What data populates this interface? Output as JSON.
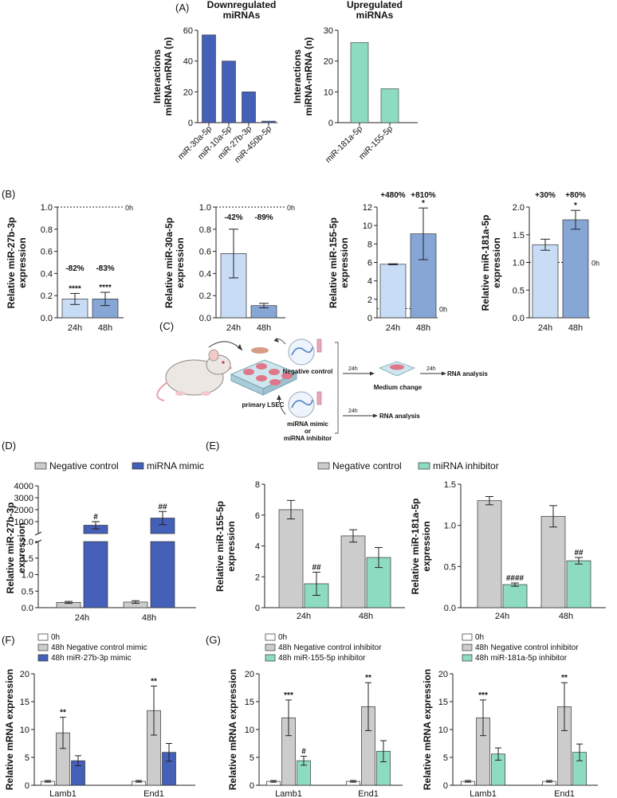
{
  "figure": {
    "colors": {
      "dark_blue": "#4560b8",
      "light_blue": "#c8dcf6",
      "mid_blue": "#86a6d6",
      "teal": "#8ddcc2",
      "gray": "#cccccc",
      "white": "#ffffff"
    },
    "panel_labels": {
      "A": "(A)",
      "B": "(B)",
      "C": "(C)",
      "D": "(D)",
      "E": "(E)",
      "F": "(F)",
      "G": "(G)"
    }
  },
  "diagram_C": {
    "negative_control": "Negative control",
    "mimic_line1": "miRNA mimic",
    "mimic_line2": "or",
    "mimic_line3": "miRNA inhibitor",
    "primary_cells": "primary LSEC",
    "time1": "24h",
    "time2": "24h",
    "time3": "24h",
    "medium_change": "Medium change",
    "rna_analysis_1": "RNA analysis",
    "rna_analysis_2": "RNA analysis"
  },
  "chart_data": [
    {
      "id": "A1",
      "type": "bar",
      "title": "Downregulated\nmiRNAs",
      "ylabel": "Interactions\nmiRNA-mRNA (n)",
      "ylim": [
        0,
        60
      ],
      "yticks": [
        0,
        20,
        40,
        60
      ],
      "categories": [
        "miR-30a-5p",
        "miR-10a-5p",
        "miR-27b-3p",
        "miR-450b-5p"
      ],
      "values": [
        57,
        40,
        20,
        1
      ],
      "colors": [
        "dark_blue",
        "dark_blue",
        "dark_blue",
        "dark_blue"
      ]
    },
    {
      "id": "A2",
      "type": "bar",
      "title": "Upregulated\nmiRNAs",
      "ylabel": "Interactions\nmiRNA-mRNA (n)",
      "ylim": [
        0,
        30
      ],
      "yticks": [
        0,
        10,
        20,
        30
      ],
      "categories": [
        "miR-181a-5p",
        "miR-155-5p"
      ],
      "values": [
        26,
        11
      ],
      "colors": [
        "teal",
        "teal"
      ]
    },
    {
      "id": "B1",
      "type": "bar",
      "ylabel": "Relative miR-27b-3p\nexpression",
      "ylim": [
        0,
        1.0
      ],
      "yticks": [
        0.0,
        0.2,
        0.4,
        0.6,
        0.8,
        1.0
      ],
      "categories": [
        "24h",
        "48h"
      ],
      "values": [
        0.17,
        0.17
      ],
      "errors": [
        0.05,
        0.06
      ],
      "colors": [
        "light_blue",
        "mid_blue"
      ],
      "sig": [
        "****",
        "****"
      ],
      "pct": [
        "-82%",
        "-83%"
      ],
      "refline": 1.0,
      "reflabel": "0h"
    },
    {
      "id": "B2",
      "type": "bar",
      "ylabel": "Relative miR-30a-5p\nexpression",
      "ylim": [
        0,
        1.0
      ],
      "yticks": [
        0.0,
        0.2,
        0.4,
        0.6,
        0.8,
        1.0
      ],
      "categories": [
        "24h",
        "48h"
      ],
      "values": [
        0.58,
        0.11
      ],
      "errors": [
        0.22,
        0.02
      ],
      "colors": [
        "light_blue",
        "mid_blue"
      ],
      "sig": [
        "",
        ""
      ],
      "pct": [
        "-42%",
        "-89%"
      ],
      "refline": 1.0,
      "reflabel": "0h"
    },
    {
      "id": "B3",
      "type": "bar",
      "ylabel": "Relative miR-155-5p\nexpression",
      "ylim": [
        0,
        12
      ],
      "yticks": [
        0,
        2,
        4,
        6,
        8,
        10,
        12
      ],
      "categories": [
        "24h",
        "48h"
      ],
      "values": [
        5.8,
        9.1
      ],
      "errors": [
        0.05,
        2.8
      ],
      "colors": [
        "light_blue",
        "mid_blue"
      ],
      "sig": [
        "",
        "*"
      ],
      "pct": [
        "+480%",
        "+810%"
      ],
      "refline": 1.0,
      "reflabel": "0h"
    },
    {
      "id": "B4",
      "type": "bar",
      "ylabel": "Relative miR-181a-5p\nexpression",
      "ylim": [
        0,
        2.0
      ],
      "yticks": [
        0.0,
        0.5,
        1.0,
        1.5,
        2.0
      ],
      "categories": [
        "24h",
        "48h"
      ],
      "values": [
        1.32,
        1.77
      ],
      "errors": [
        0.1,
        0.17
      ],
      "colors": [
        "light_blue",
        "mid_blue"
      ],
      "sig": [
        "",
        "*"
      ],
      "pct": [
        "+30%",
        "+80%"
      ],
      "refline": 1.0,
      "reflabel": "0h"
    },
    {
      "id": "D",
      "type": "bar",
      "ylabel": "Relative miR-27b-3p\nexpression",
      "axis_break": true,
      "yticks_lower": [
        0.0,
        0.5,
        1.0,
        1.5,
        2.0
      ],
      "yticks_upper": [
        1000,
        2000,
        3000,
        4000
      ],
      "categories": [
        "24h",
        "48h"
      ],
      "legend": [
        "Negative control",
        "miRNA mimic"
      ],
      "colors": [
        "gray",
        "dark_blue"
      ],
      "series": [
        {
          "name": "Negative control",
          "values": [
            0.16,
            0.17
          ],
          "errors": [
            0.03,
            0.04
          ],
          "sig": [
            "",
            ""
          ]
        },
        {
          "name": "miRNA mimic",
          "values": [
            700,
            1300
          ],
          "errors": [
            300,
            550
          ],
          "sig": [
            "#",
            "##"
          ]
        }
      ]
    },
    {
      "id": "E1",
      "type": "bar",
      "ylabel": "Relative miR-155-5p\nexpression",
      "ylim": [
        0,
        8
      ],
      "yticks": [
        0,
        2,
        4,
        6,
        8
      ],
      "categories": [
        "24h",
        "48h"
      ],
      "legend": [
        "Negative control",
        "miRNA inhibitor"
      ],
      "colors": [
        "gray",
        "teal"
      ],
      "series": [
        {
          "name": "Negative control",
          "values": [
            6.35,
            4.65
          ],
          "errors": [
            0.6,
            0.4
          ],
          "sig": [
            "",
            ""
          ]
        },
        {
          "name": "miRNA inhibitor",
          "values": [
            1.55,
            3.25
          ],
          "errors": [
            0.75,
            0.65
          ],
          "sig": [
            "##",
            ""
          ]
        }
      ]
    },
    {
      "id": "E2",
      "type": "bar",
      "ylabel": "Relative miR-181a-5p\nexpression",
      "ylim": [
        0,
        1.5
      ],
      "yticks": [
        0.0,
        0.5,
        1.0,
        1.5
      ],
      "categories": [
        "24h",
        "48h"
      ],
      "colors": [
        "gray",
        "teal"
      ],
      "series": [
        {
          "name": "Negative control",
          "values": [
            1.3,
            1.11
          ],
          "errors": [
            0.05,
            0.13
          ],
          "sig": [
            "",
            ""
          ]
        },
        {
          "name": "miRNA inhibitor",
          "values": [
            0.28,
            0.57
          ],
          "errors": [
            0.02,
            0.04
          ],
          "sig": [
            "####",
            "##"
          ]
        }
      ]
    },
    {
      "id": "F",
      "type": "bar",
      "ylabel": "Relative mRNA expression",
      "ylim": [
        0,
        20
      ],
      "yticks": [
        0,
        5,
        10,
        15,
        20
      ],
      "categories": [
        "Lamb1",
        "End1"
      ],
      "legend": [
        "0h",
        "48h Negative control mimic",
        "48h miR-27b-3p mimic"
      ],
      "colors": [
        "white",
        "gray",
        "dark_blue"
      ],
      "series": [
        {
          "name": "0h",
          "values": [
            0.7,
            0.7
          ],
          "errors": [
            0.15,
            0.15
          ],
          "sig": [
            "",
            ""
          ]
        },
        {
          "name": "48h Negative control mimic",
          "values": [
            9.4,
            13.4
          ],
          "errors": [
            2.8,
            4.4
          ],
          "sig": [
            "**",
            "**"
          ]
        },
        {
          "name": "48h miR-27b-3p mimic",
          "values": [
            4.4,
            5.9
          ],
          "errors": [
            0.9,
            1.6
          ],
          "sig": [
            "",
            ""
          ]
        }
      ]
    },
    {
      "id": "G1",
      "type": "bar",
      "ylabel": "Relative mRNA expression",
      "ylim": [
        0,
        20
      ],
      "yticks": [
        0,
        5,
        10,
        15,
        20
      ],
      "categories": [
        "Lamb1",
        "End1"
      ],
      "legend": [
        "0h",
        "48h Negative control inhibitor",
        "48h miR-155-5p inhibitor"
      ],
      "colors": [
        "white",
        "gray",
        "teal"
      ],
      "series": [
        {
          "name": "0h",
          "values": [
            0.7,
            0.7
          ],
          "errors": [
            0.15,
            0.15
          ],
          "sig": [
            "",
            ""
          ]
        },
        {
          "name": "48h Negative control inhibitor",
          "values": [
            12.1,
            14.1
          ],
          "errors": [
            3.2,
            4.3
          ],
          "sig": [
            "***",
            "**"
          ]
        },
        {
          "name": "48h miR-155-5p inhibitor",
          "values": [
            4.4,
            6.1
          ],
          "errors": [
            0.8,
            1.9
          ],
          "sig": [
            "#",
            ""
          ]
        }
      ]
    },
    {
      "id": "G2",
      "type": "bar",
      "ylabel": "Relative mRNA expression",
      "ylim": [
        0,
        20
      ],
      "yticks": [
        0,
        5,
        10,
        15,
        20
      ],
      "categories": [
        "Lamb1",
        "End1"
      ],
      "legend": [
        "0h",
        "48h Negative control inhibitor",
        "48h miR-181a-5p inhibitor"
      ],
      "colors": [
        "white",
        "gray",
        "teal"
      ],
      "series": [
        {
          "name": "0h",
          "values": [
            0.7,
            0.7
          ],
          "errors": [
            0.15,
            0.15
          ],
          "sig": [
            "",
            ""
          ]
        },
        {
          "name": "48h Negative control inhibitor",
          "values": [
            12.1,
            14.1
          ],
          "errors": [
            3.2,
            4.3
          ],
          "sig": [
            "***",
            "**"
          ]
        },
        {
          "name": "48h miR-181a-5p inhibitor",
          "values": [
            5.6,
            5.9
          ],
          "errors": [
            1.1,
            1.5
          ],
          "sig": [
            "",
            ""
          ]
        }
      ]
    }
  ]
}
